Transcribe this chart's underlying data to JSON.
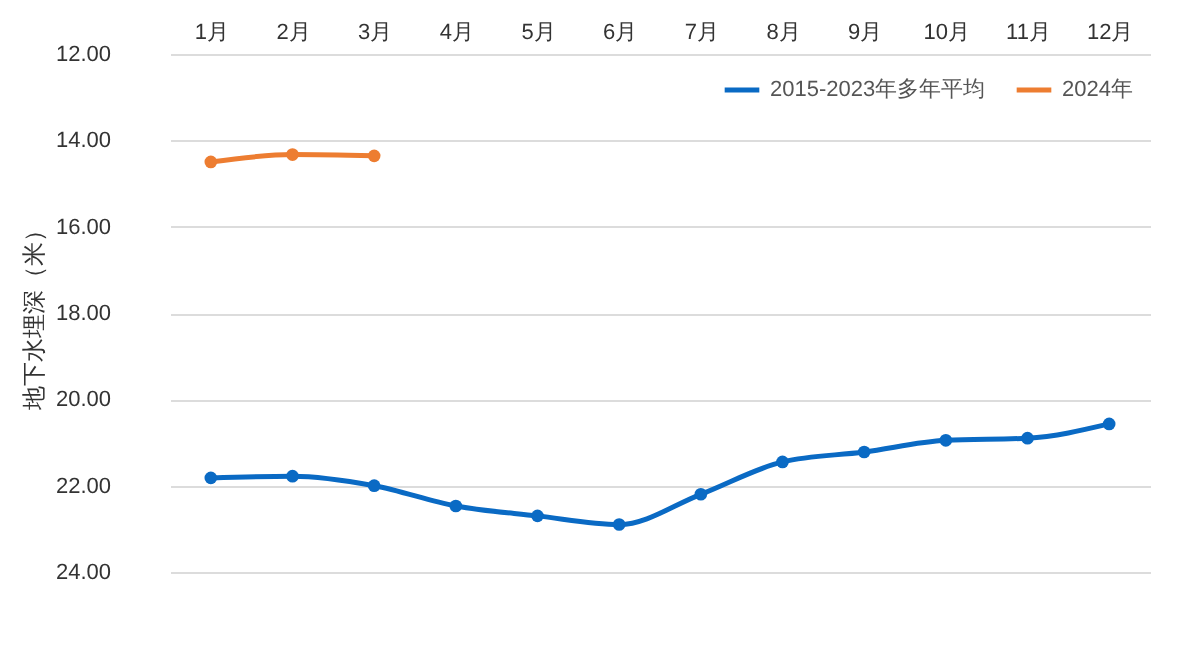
{
  "chart_data": {
    "type": "line",
    "ylabel": "地下水埋深（米）",
    "categories": [
      "1月",
      "2月",
      "3月",
      "4月",
      "5月",
      "6月",
      "7月",
      "8月",
      "9月",
      "10月",
      "11月",
      "12月"
    ],
    "series": [
      {
        "name": "2015-2023年多年平均",
        "color": "#0a6ac4",
        "values": [
          21.82,
          21.78,
          22.0,
          22.47,
          22.7,
          22.9,
          22.2,
          21.45,
          21.22,
          20.95,
          20.9,
          20.57
        ]
      },
      {
        "name": "2024年",
        "color": "#ed7d31",
        "values": [
          14.5,
          14.33,
          14.36,
          null,
          null,
          null,
          null,
          null,
          null,
          null,
          null,
          null
        ]
      }
    ],
    "ylim": [
      24,
      12
    ],
    "yticks": [
      {
        "value": 12,
        "label": "12.00"
      },
      {
        "value": 14,
        "label": "14.00"
      },
      {
        "value": 16,
        "label": "16.00"
      },
      {
        "value": 18,
        "label": "18.00"
      },
      {
        "value": 20,
        "label": "20.00"
      },
      {
        "value": 22,
        "label": "22.00"
      },
      {
        "value": 24,
        "label": "24.00"
      }
    ],
    "grid": "y",
    "legend": "top right",
    "marker": "circle",
    "line_style": "solid"
  }
}
